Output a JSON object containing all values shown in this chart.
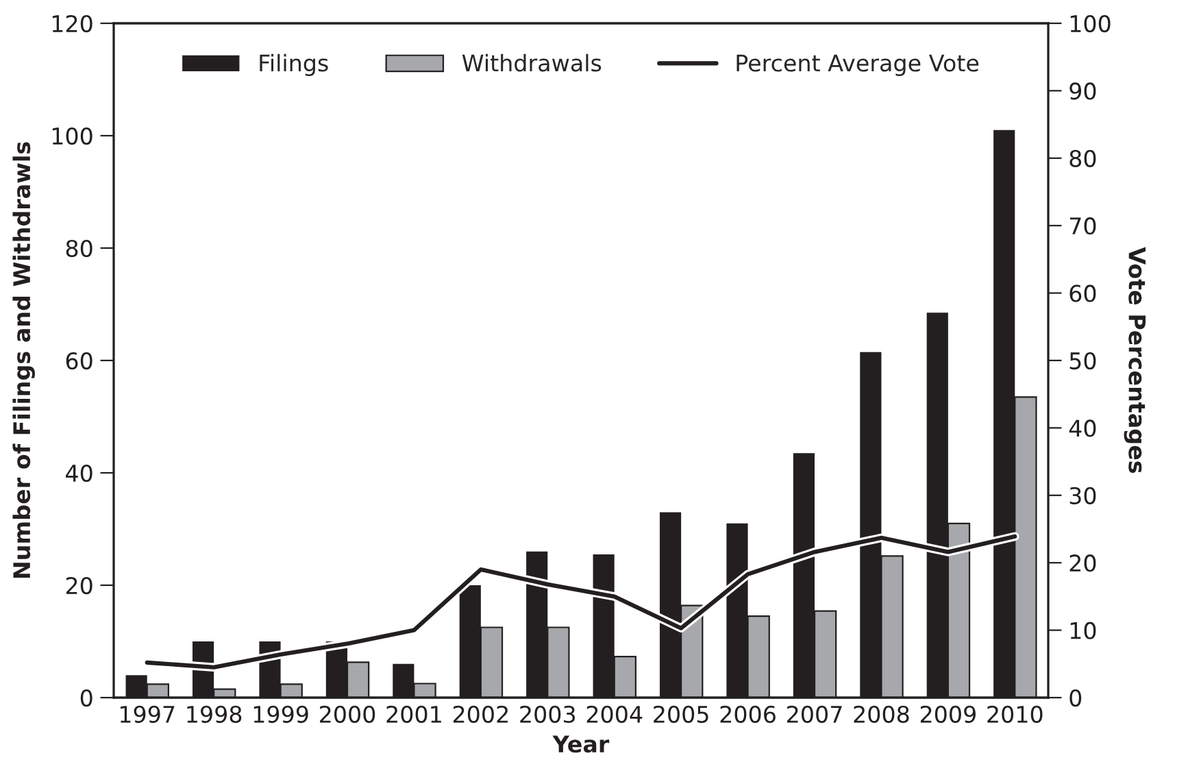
{
  "chart_data": {
    "type": "bar",
    "xlabel": "Year",
    "ylabel": "Number of Filings and Withdrawls",
    "y2label": "Vote Percentages",
    "categories": [
      "1997",
      "1998",
      "1999",
      "2000",
      "2001",
      "2002",
      "2003",
      "2004",
      "2005",
      "2006",
      "2007",
      "2008",
      "2009",
      "2010"
    ],
    "series": [
      {
        "name": "Filings",
        "color": "#231f20",
        "values": [
          4,
          10,
          10,
          10,
          6,
          20,
          26,
          25.5,
          33,
          31,
          43.5,
          61.5,
          68.5,
          101
        ]
      },
      {
        "name": "Withdrawals",
        "color": "#a7a8ab",
        "values": [
          2.4,
          1.5,
          2.4,
          6.3,
          2.5,
          12.5,
          12.5,
          7.3,
          16.4,
          14.5,
          15.4,
          25.2,
          31,
          53.5
        ]
      },
      {
        "name": "Percent Average Vote",
        "type": "line",
        "axis": "y2",
        "color": "#231f20",
        "values": [
          5.2,
          4.5,
          6.4,
          8,
          10,
          19,
          16.8,
          15,
          10.3,
          18.3,
          21.6,
          23.7,
          21.6,
          23.9
        ]
      }
    ],
    "ylim": [
      0,
      120
    ],
    "yticks": [
      0,
      20,
      40,
      60,
      80,
      100,
      120
    ],
    "y2lim": [
      0,
      100
    ],
    "y2ticks": [
      0,
      10,
      20,
      30,
      40,
      50,
      60,
      70,
      80,
      90,
      100
    ],
    "legend": "top",
    "grid": false,
    "marker": "none",
    "line_style": "solid"
  }
}
